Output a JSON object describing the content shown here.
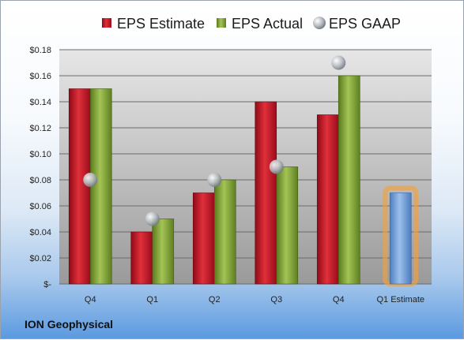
{
  "company": "ION Geophysical",
  "legend": [
    {
      "key": "estimate",
      "label": "EPS Estimate",
      "color": "#c8102e"
    },
    {
      "key": "actual",
      "label": "EPS Actual",
      "color": "#7a9a2e"
    },
    {
      "key": "gaap",
      "label": "EPS GAAP",
      "color": "#a7adb3"
    }
  ],
  "chart_data": {
    "type": "bar",
    "categories": [
      "Q4",
      "Q1",
      "Q2",
      "Q3",
      "Q4",
      "Q1 Estimate"
    ],
    "series": [
      {
        "name": "EPS Estimate",
        "values": [
          0.15,
          0.04,
          0.07,
          0.14,
          0.13,
          null
        ]
      },
      {
        "name": "EPS Actual",
        "values": [
          0.15,
          0.05,
          0.08,
          0.09,
          0.16,
          null
        ]
      },
      {
        "name": "EPS GAAP",
        "values": [
          0.08,
          0.05,
          0.08,
          0.09,
          0.17,
          null
        ]
      },
      {
        "name": "",
        "values": [
          null,
          null,
          null,
          null,
          null,
          0.07
        ]
      }
    ],
    "y_ticks": [
      "$-",
      "$0.02",
      "$0.04",
      "$0.06",
      "$0.08",
      "$0.10",
      "$0.12",
      "$0.14",
      "$0.16",
      "$0.18"
    ],
    "ylim": [
      0,
      0.18
    ],
    "legend_position": "top",
    "grid": true
  }
}
